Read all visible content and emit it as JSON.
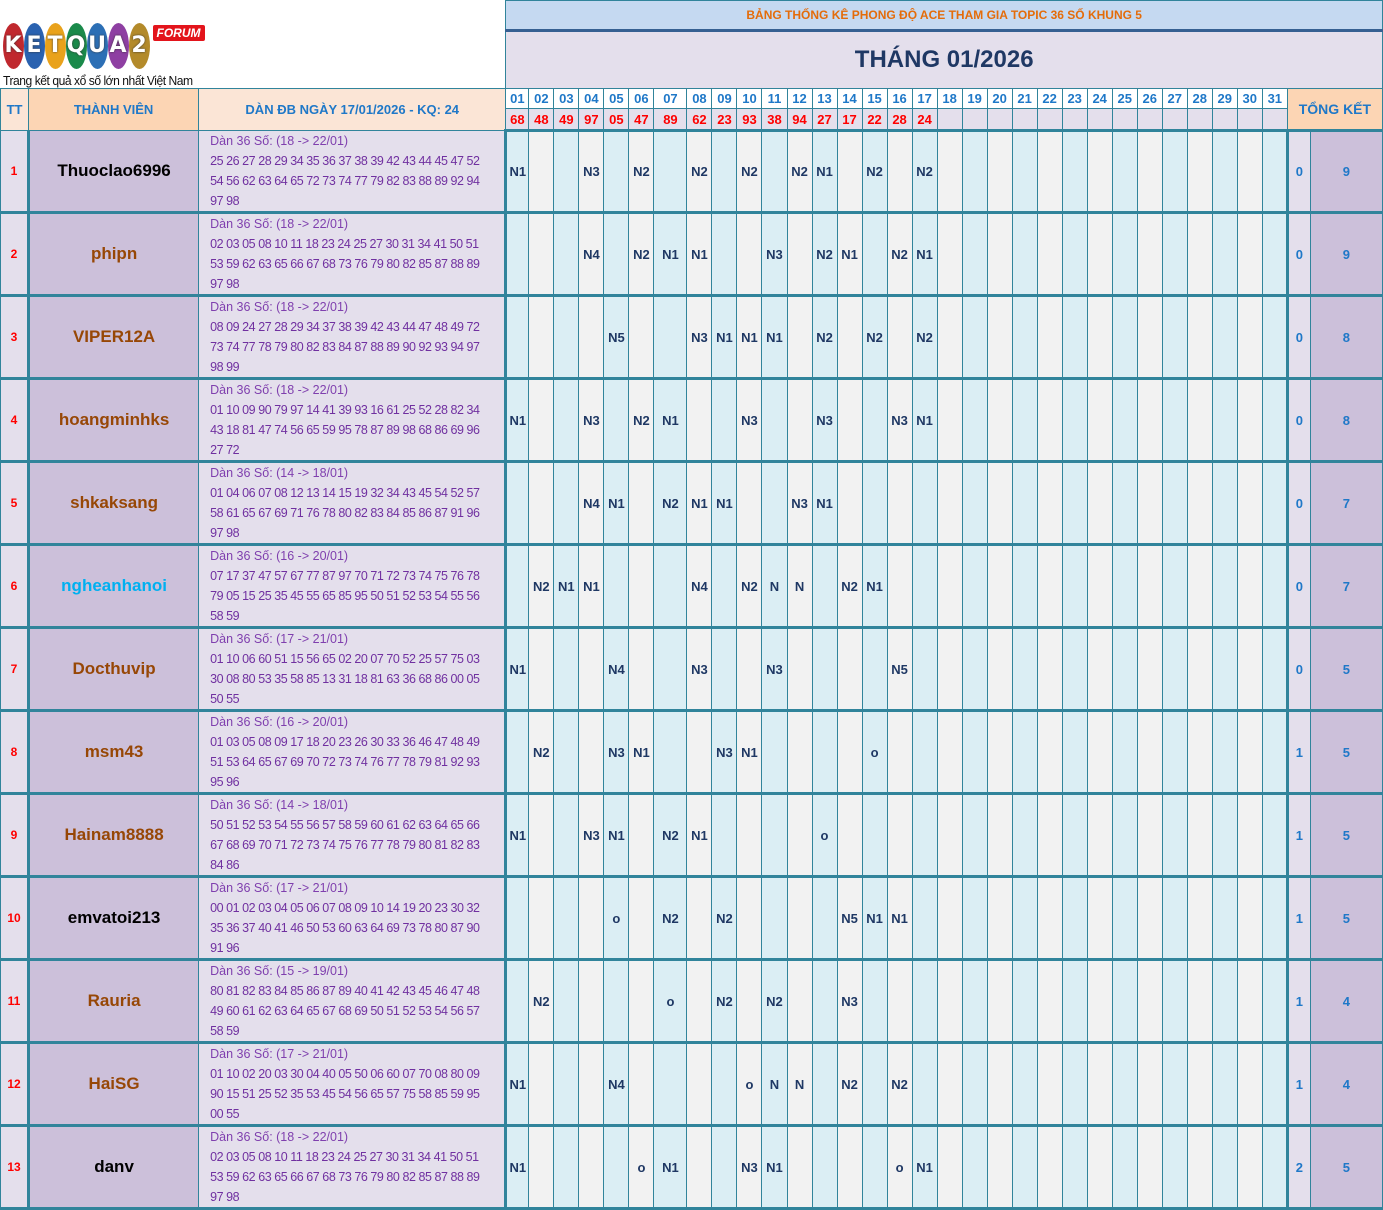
{
  "logo": {
    "text": "KETQUA2",
    "forum": "FORUM",
    "tagline": "Trang kết quả xổ số lớn nhất Việt Nam",
    "ball_colors": [
      "#c0282e",
      "#2a62b0",
      "#e9a21b",
      "#1a8a4a",
      "#2c6fb5",
      "#8e3fa2",
      "#b38a2a"
    ]
  },
  "header": {
    "title": "BẢNG THỐNG KÊ PHONG ĐỘ ACE THAM GIA TOPIC 36 SỐ KHUNG 5",
    "month": "THÁNG 01/2026",
    "col_tt": "TT",
    "col_member": "THÀNH VIÊN",
    "col_dan": "DÀN ĐB NGÀY 17/01/2026 - KQ: 24",
    "col_total": "TỔNG KẾT"
  },
  "days": [
    "01",
    "02",
    "03",
    "04",
    "05",
    "06",
    "07",
    "08",
    "09",
    "10",
    "11",
    "12",
    "13",
    "14",
    "15",
    "16",
    "17",
    "18",
    "19",
    "20",
    "21",
    "22",
    "23",
    "24",
    "25",
    "26",
    "27",
    "28",
    "29",
    "30",
    "31"
  ],
  "results": [
    "68",
    "48",
    "49",
    "97",
    "05",
    "47",
    "89",
    "62",
    "23",
    "93",
    "38",
    "94",
    "27",
    "17",
    "22",
    "28",
    "24",
    "",
    "",
    "",
    "",
    "",
    "",
    "",
    "",
    "",
    "",
    "",
    "",
    "",
    ""
  ],
  "colors": {
    "grid": "#31849b",
    "result": "#ff0000",
    "odd_col": "#dbeef4",
    "even_col": "#f2f2f2"
  },
  "rows": [
    {
      "tt": "1",
      "name": "Thuoclao6996",
      "name_color": "#000000",
      "dan_title": "Dàn 36 Số: (18 -> 22/01)",
      "dan_lines": [
        "25 26 27 28 29 34 35 36 37 38 39 42 43 44 45 47 52",
        "54 56 62 63 64 65 72 73 74 77 79 82 83 88 89 92 94",
        "97 98"
      ],
      "marks": {
        "01": "N1",
        "04": "N3",
        "06": "N2",
        "08": "N2",
        "10": "N2",
        "12": "N2",
        "13": "N1",
        "15": "N2",
        "17": "N2"
      },
      "total_a": "0",
      "total_b": "9"
    },
    {
      "tt": "2",
      "name": "phipn",
      "name_color": "#974706",
      "dan_title": "Dàn 36 Số: (18 -> 22/01)",
      "dan_lines": [
        "02 03 05 08 10 11 18 23 24 25 27 30 31 34 41 50 51",
        "53 59 62 63 65 66 67 68 73 76 79 80 82 85 87 88 89",
        "97 98"
      ],
      "marks": {
        "04": "N4",
        "06": "N2",
        "07": "N1",
        "08": "N1",
        "11": "N3",
        "13": "N2",
        "14": "N1",
        "16": "N2",
        "17": "N1"
      },
      "total_a": "0",
      "total_b": "9"
    },
    {
      "tt": "3",
      "name": "VIPER12A",
      "name_color": "#974706",
      "dan_title": "Dàn 36 Số: (18 -> 22/01)",
      "dan_lines": [
        "08 09 24 27 28 29 34 37 38 39 42 43 44 47 48 49 72",
        "73 74 77 78 79 80 82 83 84 87 88 89 90 92 93 94 97",
        "98 99"
      ],
      "marks": {
        "05": "N5",
        "08": "N3",
        "09": "N1",
        "10": "N1",
        "11": "N1",
        "13": "N2",
        "15": "N2",
        "17": "N2"
      },
      "total_a": "0",
      "total_b": "8"
    },
    {
      "tt": "4",
      "name": "hoangminhks",
      "name_color": "#974706",
      "dan_title": "Dàn 36 Số: (18 -> 22/01)",
      "dan_lines": [
        "01 10 09 90 79 97 14 41 39 93 16 61 25 52 28 82 34",
        "43 18 81 47 74 56 65 59 95 78 87 89 98 68 86 69 96",
        "27 72"
      ],
      "marks": {
        "01": "N1",
        "04": "N3",
        "06": "N2",
        "07": "N1",
        "10": "N3",
        "13": "N3",
        "16": "N3",
        "17": "N1"
      },
      "total_a": "0",
      "total_b": "8"
    },
    {
      "tt": "5",
      "name": "shkaksang",
      "name_color": "#974706",
      "dan_title": "Dàn 36 Số: (14 -> 18/01)",
      "dan_lines": [
        "01 04 06 07 08 12 13 14 15 19 32 34 43 45 54 52 57",
        "58 61 65 67 69 71 76 78 80 82 83 84 85 86 87 91 96",
        "97 98"
      ],
      "marks": {
        "04": "N4",
        "05": "N1",
        "07": "N2",
        "08": "N1",
        "09": "N1",
        "12": "N3",
        "13": "N1"
      },
      "total_a": "0",
      "total_b": "7"
    },
    {
      "tt": "6",
      "name": "ngheanhanoi",
      "name_color": "#00b0f0",
      "dan_title": "Dàn 36 Số: (16 -> 20/01)",
      "dan_lines": [
        "07 17 37 47 57 67 77 87 97 70 71 72 73 74 75 76 78",
        "79 05 15 25 35 45 55 65 85 95 50 51 52 53 54 55 56",
        "58 59"
      ],
      "marks": {
        "02": "N2",
        "03": "N1",
        "04": "N1",
        "08": "N4",
        "10": "N2",
        "11": "N",
        "12": "N",
        "14": "N2",
        "15": "N1"
      },
      "total_a": "0",
      "total_b": "7"
    },
    {
      "tt": "7",
      "name": "Docthuvip",
      "name_color": "#974706",
      "dan_title": "Dàn 36 Số: (17 -> 21/01)",
      "dan_lines": [
        "01 10 06 60 51 15 56 65 02 20 07 70 52 25 57 75 03",
        "30 08 80 53 35 58 85 13 31 18 81 63 36 68 86 00 05",
        "50 55"
      ],
      "marks": {
        "01": "N1",
        "05": "N4",
        "08": "N3",
        "11": "N3",
        "16": "N5"
      },
      "total_a": "0",
      "total_b": "5"
    },
    {
      "tt": "8",
      "name": "msm43",
      "name_color": "#974706",
      "dan_title": "Dàn 36 Số: (16 -> 20/01)",
      "dan_lines": [
        "01 03 05 08 09 17 18 20 23 26 30 33 36 46 47 48 49",
        "51 53 64 65 67 69 70 72 73 74 76 77 78 79 81 92 93",
        "95 96"
      ],
      "marks": {
        "02": "N2",
        "05": "N3",
        "06": "N1",
        "09": "N3",
        "10": "N1",
        "15": "o"
      },
      "total_a": "1",
      "total_b": "5"
    },
    {
      "tt": "9",
      "name": "Hainam8888",
      "name_color": "#974706",
      "dan_title": "Dàn 36 Số: (14 -> 18/01)",
      "dan_lines": [
        "50 51 52 53 54 55 56 57 58 59 60 61 62 63 64 65 66",
        "67 68 69 70 71 72 73 74 75 76 77 78 79 80 81 82 83",
        "84 86"
      ],
      "marks": {
        "01": "N1",
        "04": "N3",
        "05": "N1",
        "07": "N2",
        "08": "N1",
        "13": "o"
      },
      "total_a": "1",
      "total_b": "5"
    },
    {
      "tt": "10",
      "name": "emvatoi213",
      "name_color": "#000000",
      "dan_title": "Dàn 36 Số: (17 -> 21/01)",
      "dan_lines": [
        "00 01 02 03 04 05 06 07 08 09 10 14 19 20 23 30 32",
        "35 36 37 40 41 46 50 53 60 63 64 69 73 78 80 87 90",
        "91 96"
      ],
      "marks": {
        "05": "o",
        "07": "N2",
        "09": "N2",
        "14": "N5",
        "15": "N1",
        "16": "N1"
      },
      "total_a": "1",
      "total_b": "5"
    },
    {
      "tt": "11",
      "name": "Rauria",
      "name_color": "#974706",
      "dan_title": "Dàn 36 Số: (15 -> 19/01)",
      "dan_lines": [
        "80 81 82 83 84 85 86 87 89 40 41 42 43 45 46 47 48",
        "49 60 61 62 63 64 65 67 68 69 50 51 52 53 54 56 57",
        "58 59"
      ],
      "marks": {
        "02": "N2",
        "07": "o",
        "09": "N2",
        "11": "N2",
        "14": "N3"
      },
      "total_a": "1",
      "total_b": "4"
    },
    {
      "tt": "12",
      "name": "HaiSG",
      "name_color": "#974706",
      "dan_title": "Dàn 36 Số: (17 -> 21/01)",
      "dan_lines": [
        "01 10 02 20 03 30 04 40 05 50 06 60 07 70 08 80 09",
        "90 15 51 25 52 35 53 45 54 56 65 57 75 58 85 59 95",
        "00 55"
      ],
      "marks": {
        "01": "N1",
        "05": "N4",
        "10": "o",
        "11": "N",
        "12": "N",
        "14": "N2",
        "16": "N2"
      },
      "total_a": "1",
      "total_b": "4"
    },
    {
      "tt": "13",
      "name": "danv",
      "name_color": "#000000",
      "dan_title": "Dàn 36 Số: (18 -> 22/01)",
      "dan_lines": [
        "02 03 05 08 10 11 18 23 24 25 27 30 31 34 41 50 51",
        "53 59 62 63 65 66 67 68 73 76 79 80 82 85 87 88 89",
        "97 98"
      ],
      "marks": {
        "01": "N1",
        "06": "o",
        "07": "N1",
        "10": "N3",
        "11": "N1",
        "16": "o",
        "17": "N1"
      },
      "total_a": "2",
      "total_b": "5"
    }
  ]
}
